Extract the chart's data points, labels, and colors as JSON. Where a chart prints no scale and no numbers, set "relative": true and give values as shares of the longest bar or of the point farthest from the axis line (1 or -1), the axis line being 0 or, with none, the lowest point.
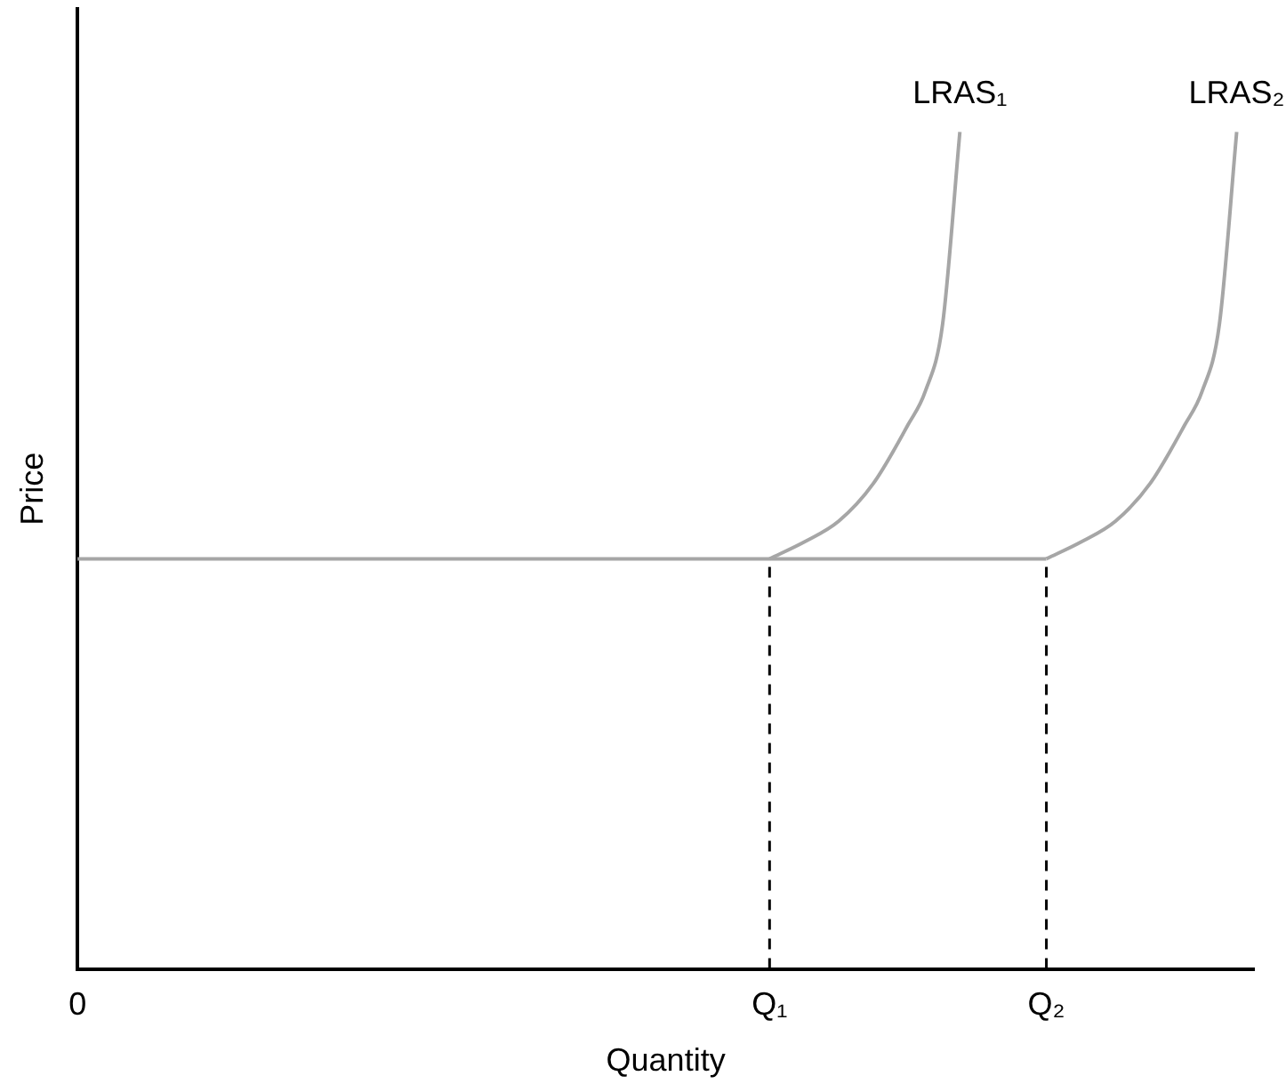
{
  "chart_data": {
    "type": "line",
    "relative": true,
    "xlabel": "Quantity",
    "ylabel": "Price",
    "grid": false,
    "marker": "none",
    "categories": [
      "0",
      null,
      null,
      null,
      null,
      null,
      null,
      null,
      null,
      null,
      null,
      null,
      null,
      null,
      null,
      null,
      null,
      null,
      null,
      null,
      null,
      null,
      null,
      null,
      null,
      null,
      null,
      null,
      null,
      null,
      null,
      null,
      null,
      null,
      null,
      null,
      null,
      null,
      null,
      null,
      "Q₁",
      null,
      null,
      null,
      null,
      null,
      null,
      null,
      null,
      null,
      null,
      null,
      null,
      null,
      null,
      null,
      "Q₂",
      null,
      null,
      null,
      null,
      null,
      null,
      null,
      null,
      null,
      null,
      null,
      null
    ],
    "series": [
      {
        "color": "#a6a6a6",
        "values": [
          0.49,
          null,
          null,
          null,
          null,
          null,
          null,
          null,
          null,
          null,
          null,
          null,
          null,
          null,
          null,
          null,
          null,
          null,
          null,
          null,
          null,
          null,
          null,
          null,
          null,
          null,
          null,
          null,
          null,
          null,
          null,
          null,
          null,
          null,
          null,
          null,
          null,
          null,
          null,
          null,
          null,
          null,
          null,
          null,
          null,
          null,
          null,
          null,
          null,
          null,
          null,
          null,
          null,
          null,
          null,
          null,
          0.49,
          null,
          null,
          null,
          null,
          null,
          null,
          null,
          null,
          null,
          null,
          null,
          null
        ]
      },
      {
        "name": "LRAS₁",
        "color": "#a6a6a6",
        "values": [
          null,
          null,
          null,
          null,
          null,
          null,
          null,
          null,
          null,
          null,
          null,
          null,
          null,
          null,
          null,
          null,
          null,
          null,
          null,
          null,
          null,
          null,
          null,
          null,
          null,
          null,
          null,
          null,
          null,
          null,
          null,
          null,
          null,
          null,
          null,
          null,
          null,
          null,
          null,
          null,
          0.49,
          null,
          0.51,
          null,
          0.535,
          null,
          0.58,
          null,
          0.65,
          0.69,
          0.77,
          1,
          null,
          null,
          null,
          null,
          null,
          null,
          null,
          null,
          null,
          null,
          null,
          null,
          null,
          null,
          null,
          null,
          null
        ]
      },
      {
        "name": "LRAS₂",
        "color": "#a6a6a6",
        "values": [
          null,
          null,
          null,
          null,
          null,
          null,
          null,
          null,
          null,
          null,
          null,
          null,
          null,
          null,
          null,
          null,
          null,
          null,
          null,
          null,
          null,
          null,
          null,
          null,
          null,
          null,
          null,
          null,
          null,
          null,
          null,
          null,
          null,
          null,
          null,
          null,
          null,
          null,
          null,
          null,
          null,
          null,
          null,
          null,
          null,
          null,
          null,
          null,
          null,
          null,
          null,
          null,
          null,
          null,
          null,
          null,
          0.49,
          null,
          0.51,
          null,
          0.535,
          null,
          0.58,
          null,
          0.65,
          0.69,
          0.77,
          1,
          null
        ]
      }
    ],
    "ref_lines": [
      {
        "axis": "x",
        "value": "Q₁",
        "color": "#000000",
        "line_style": "dashed"
      },
      {
        "axis": "x",
        "value": "Q₂",
        "color": "#000000",
        "line_style": "dashed"
      }
    ]
  }
}
